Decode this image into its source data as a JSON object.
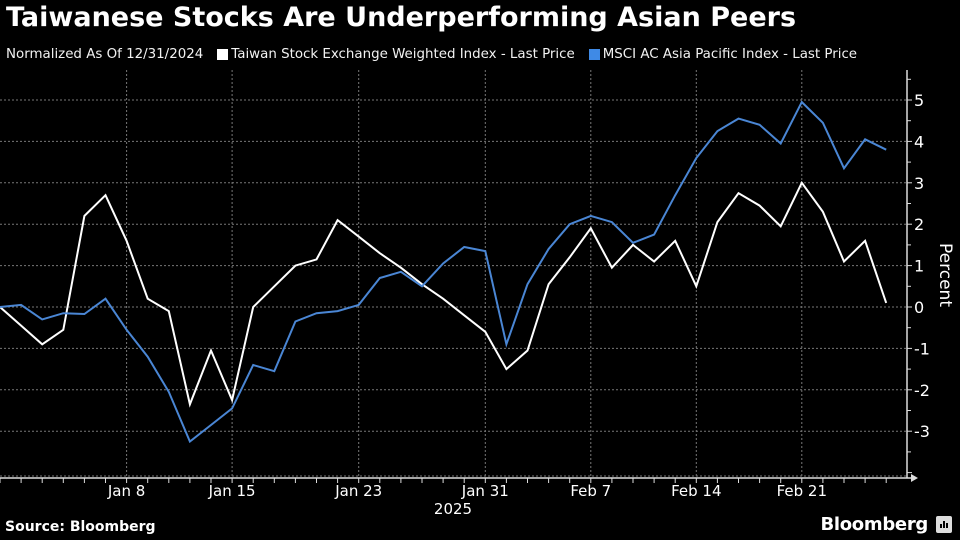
{
  "header": {
    "title": "Taiwanese Stocks Are Underperforming Asian Peers",
    "subtitle": "Normalized As Of 12/31/2024"
  },
  "legend": [
    {
      "label": "Taiwan Stock Exchange Weighted Index - Last Price",
      "color": "#ffffff"
    },
    {
      "label": "MSCI AC Asia Pacific Index - Last Price",
      "color": "#4a90e2"
    }
  ],
  "footer": {
    "source": "Source: Bloomberg",
    "brand": "Bloomberg"
  },
  "colors": {
    "background": "#000000",
    "taiwan_line": "#ffffff",
    "msci_line": "#4a86d4",
    "grid": "#777777",
    "axis": "#dddddd"
  },
  "chart_data": {
    "type": "line",
    "title": "Taiwanese Stocks Are Underperforming Asian Peers",
    "subtitle": "Normalized As Of 12/31/2024",
    "xlabel": "2025",
    "ylabel": "Percent",
    "ylim": [
      -4,
      5.8
    ],
    "yticks": [
      -3,
      -2,
      -1,
      0,
      1,
      2,
      3,
      4,
      5
    ],
    "grid": true,
    "legend_position": "top",
    "y_axis_side": "right",
    "x_tick_labels": [
      {
        "label": "Jan 8",
        "index": 6
      },
      {
        "label": "Jan 15",
        "index": 11
      },
      {
        "label": "Jan 23",
        "index": 17
      },
      {
        "label": "Jan 31",
        "index": 23
      },
      {
        "label": "Feb 7",
        "index": 28
      },
      {
        "label": "Feb 14",
        "index": 33
      },
      {
        "label": "Feb 21",
        "index": 38
      }
    ],
    "x_year_label": "2025",
    "n_points": 43,
    "series": [
      {
        "name": "Taiwan Stock Exchange Weighted Index - Last Price",
        "color": "#ffffff",
        "values": [
          0,
          -0.45,
          -0.9,
          -0.55,
          2.2,
          2.7,
          1.6,
          0.2,
          -0.1,
          -2.35,
          -1.05,
          -2.25,
          0.0,
          0.5,
          1.0,
          1.15,
          2.1,
          1.7,
          1.3,
          0.95,
          0.55,
          0.2,
          -0.2,
          -0.6,
          -1.5,
          -1.05,
          0.55,
          1.2,
          1.9,
          0.95,
          1.5,
          1.1,
          1.6,
          0.5,
          2.05,
          2.75,
          2.45,
          1.95,
          3.0,
          2.3,
          1.1,
          1.6,
          0.1
        ]
      },
      {
        "name": "MSCI AC Asia Pacific Index - Last Price",
        "color": "#4a86d4",
        "values": [
          0,
          0.05,
          -0.3,
          -0.15,
          -0.17,
          0.2,
          -0.55,
          -1.2,
          -2.05,
          -3.25,
          -2.85,
          -2.45,
          -1.4,
          -1.55,
          -0.35,
          -0.15,
          -0.1,
          0.05,
          0.7,
          0.85,
          0.5,
          1.05,
          1.45,
          1.35,
          -0.9,
          0.55,
          1.4,
          2.0,
          2.2,
          2.05,
          1.55,
          1.75,
          2.7,
          3.6,
          4.25,
          4.55,
          4.4,
          3.95,
          4.95,
          4.45,
          3.35,
          4.05,
          3.8
        ]
      }
    ]
  }
}
